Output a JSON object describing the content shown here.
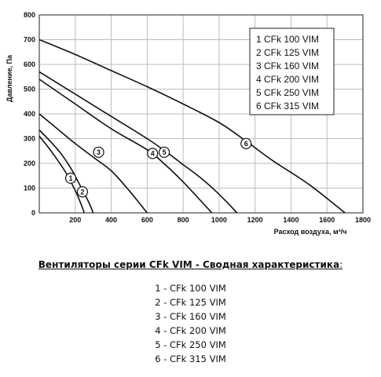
{
  "chart_data": {
    "type": "line",
    "title": "",
    "xlabel": "Расход воздуха, м³/ч",
    "ylabel": "Давление, Па",
    "xlim": [
      0,
      1800
    ],
    "ylim": [
      0,
      800
    ],
    "xticks": [
      "0",
      "200",
      "400",
      "600",
      "800",
      "1000",
      "1200",
      "1400",
      "1600",
      "1800"
    ],
    "yticks": [
      "0",
      "100",
      "200",
      "300",
      "400",
      "500",
      "600",
      "700",
      "800"
    ],
    "grid": true,
    "legend_position": "top-right",
    "legend": [
      "1 CFk 100 VIM",
      "2 CFk 125 VIM",
      "3 CFk 160 VIM",
      "4 CFk 200 VIM",
      "5 CFk 250 VIM",
      "6 CFk 315 VIM"
    ],
    "series": [
      {
        "marker": "1",
        "marker_at": [
          175,
          140
        ],
        "x": [
          0,
          50,
          100,
          150,
          200,
          230,
          250
        ],
        "y": [
          310,
          265,
          215,
          160,
          90,
          40,
          0
        ]
      },
      {
        "marker": "2",
        "marker_at": [
          240,
          85
        ],
        "x": [
          0,
          60,
          120,
          180,
          220,
          260,
          280,
          300
        ],
        "y": [
          335,
          290,
          240,
          175,
          120,
          65,
          35,
          0
        ]
      },
      {
        "marker": "3",
        "marker_at": [
          330,
          245
        ],
        "x": [
          0,
          100,
          200,
          300,
          400,
          500,
          600
        ],
        "y": [
          400,
          340,
          280,
          225,
          170,
          90,
          0
        ]
      },
      {
        "marker": "4",
        "marker_at": [
          630,
          240
        ],
        "x": [
          0,
          200,
          400,
          600,
          700,
          800,
          960
        ],
        "y": [
          540,
          440,
          340,
          255,
          195,
          125,
          0
        ]
      },
      {
        "marker": "5",
        "marker_at": [
          695,
          245
        ],
        "x": [
          0,
          200,
          400,
          600,
          700,
          800,
          900,
          1000,
          1100
        ],
        "y": [
          570,
          480,
          390,
          300,
          250,
          195,
          140,
          75,
          0
        ]
      },
      {
        "marker": "6",
        "marker_at": [
          1150,
          280
        ],
        "x": [
          0,
          200,
          400,
          600,
          800,
          1000,
          1150,
          1300,
          1500,
          1700
        ],
        "y": [
          700,
          640,
          575,
          510,
          440,
          365,
          290,
          210,
          115,
          0
        ]
      }
    ]
  },
  "summary": {
    "title": "Вентиляторы серии CFk VIM - Сводная характеристика",
    "title_suffix": ":",
    "lines": [
      "1 - CFk 100  VIM",
      "2 - CFk 125  VIM",
      "3 - CFk 160  VIM",
      "4 - CFk 200  VIM",
      "5 - CFk 250  VIM",
      "6 - CFk 315  VIM"
    ]
  }
}
